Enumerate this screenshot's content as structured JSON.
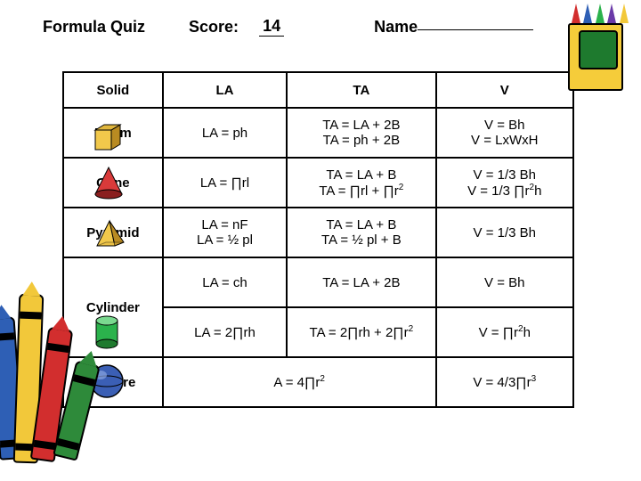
{
  "header": {
    "title": "Formula Quiz",
    "score_label": "Score:",
    "score_value": "14",
    "name_label": "Name"
  },
  "columns": {
    "c1": "Solid",
    "c2": "LA",
    "c3": "TA",
    "c4": "V"
  },
  "rows": {
    "prism": {
      "name": "Prism",
      "la": "LA = ph",
      "ta": "TA = LA + 2B\nTA = ph + 2B",
      "v": "V = Bh\nV = LxWxH"
    },
    "cone": {
      "name": "Cone",
      "la": "LA = ∏rl",
      "ta": "TA = LA + B\nTA = ∏rl + ∏r²",
      "v": "V = 1/3 Bh\nV = 1/3 ∏r²h"
    },
    "pyramid": {
      "name": "Pyramid",
      "la": "LA = nF\nLA = ½ pl",
      "ta": "TA = LA + B\nTA = ½ pl + B",
      "v": "V = 1/3 Bh"
    },
    "cylinder": {
      "name": "Cylinder",
      "la1": "LA = ch",
      "la2": "LA = 2∏rh",
      "ta1": "TA = LA + 2B",
      "ta2": "TA = 2∏rh + 2∏r²",
      "v1": "V = Bh",
      "v2": "V = ∏r²h"
    },
    "sphere": {
      "name": "Sphere",
      "a": "A = 4∏r²",
      "v": "V = 4/3∏r³"
    }
  },
  "colors": {
    "prism_face": "#f1c84b",
    "prism_side": "#b98b22",
    "cone_body": "#d93a3a",
    "cone_shade": "#8a1f1f",
    "pyramid_face": "#f1c84b",
    "pyramid_side": "#b98b22",
    "cylinder_body": "#2bb24c",
    "cylinder_top": "#7ad98f",
    "sphere_body": "#3b5fb5",
    "sphere_hi": "#8aa5e0",
    "crayon_blue": "#2e5fb5",
    "crayon_yellow": "#f2c83a",
    "crayon_red": "#d22e2e",
    "crayon_green": "#2e8a3a",
    "crayon_purple": "#6a3aa8"
  }
}
